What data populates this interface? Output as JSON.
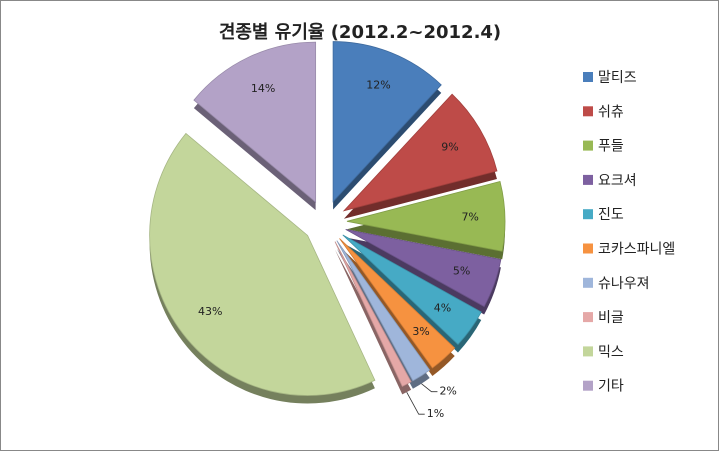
{
  "chart_data": {
    "type": "pie",
    "title": "견종별 유기율 (2012.2~2012.4)",
    "categories": [
      "말티즈",
      "쉬츄",
      "푸들",
      "요크셔",
      "진도",
      "코카스파니엘",
      "슈나우져",
      "비글",
      "믹스",
      "기타"
    ],
    "values": [
      12,
      9,
      7,
      5,
      4,
      3,
      2,
      1,
      43,
      14
    ],
    "value_labels": [
      "12%",
      "9%",
      "7%",
      "5%",
      "4%",
      "3%",
      "2%",
      "1%",
      "43%",
      "14%"
    ],
    "colors": [
      "#4a7ebb",
      "#be4b48",
      "#98b954",
      "#7d60a0",
      "#46aac5",
      "#f69240",
      "#9fb6db",
      "#e5a8a7",
      "#c3d69b",
      "#b3a2c7"
    ],
    "legend": "right"
  }
}
